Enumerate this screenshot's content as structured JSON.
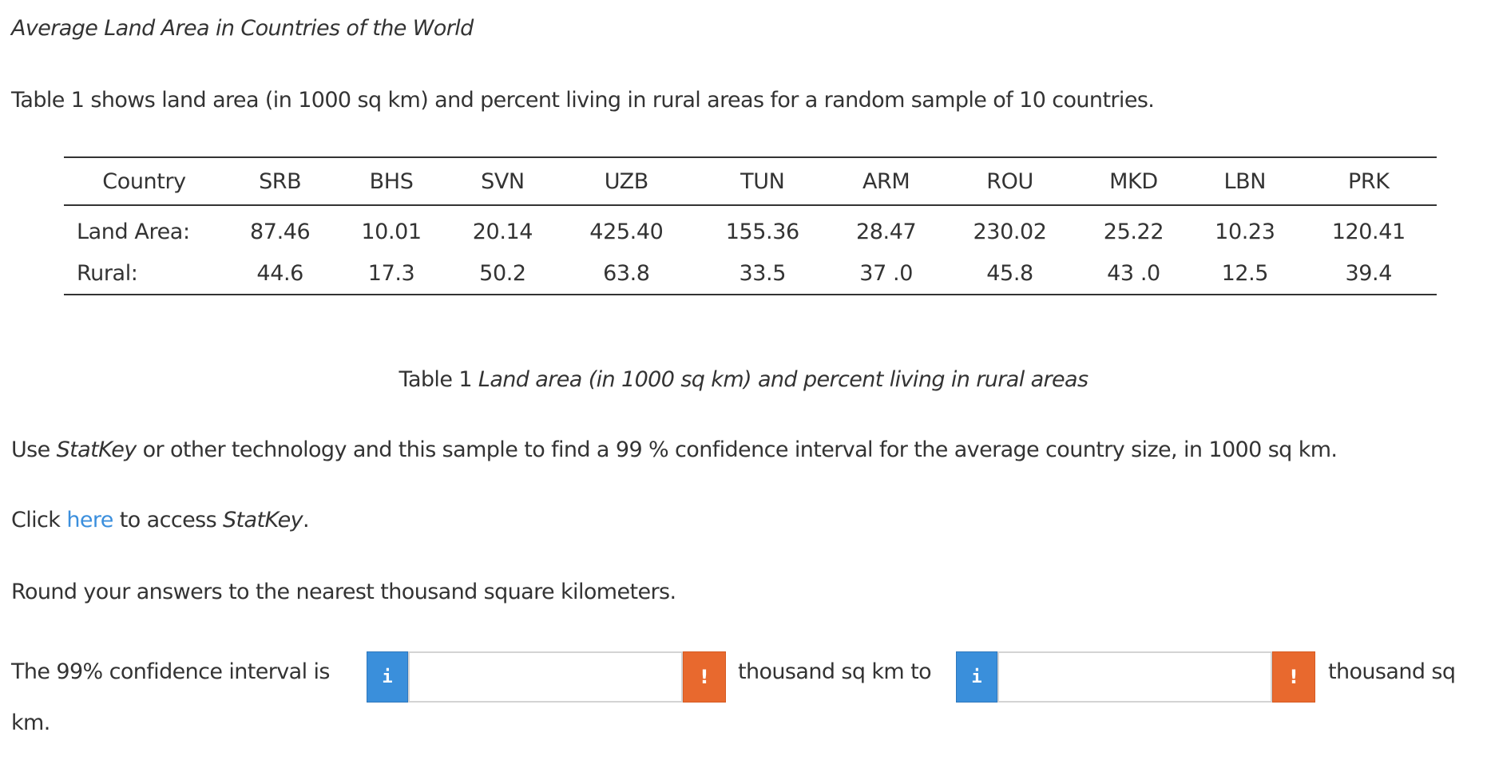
{
  "title": "Average Land Area in Countries of the World",
  "intro": "Table 1 shows land area (in 1000 sq km) and percent living in rural areas for a random sample of 10 countries.",
  "table": {
    "header_label": "Country",
    "countries": [
      "SRB",
      "BHS",
      "SVN",
      "UZB",
      "TUN",
      "ARM",
      "ROU",
      "MKD",
      "LBN",
      "PRK"
    ],
    "rows": [
      {
        "label": "Land Area:",
        "values": [
          "87.46",
          "10.01",
          "20.14",
          "425.40",
          "155.36",
          "28.47",
          "230.02",
          "25.22",
          "10.23",
          "120.41"
        ]
      },
      {
        "label": "Rural:",
        "values": [
          "44.6",
          "17.3",
          "50.2",
          "63.8",
          "33.5",
          "37 .0",
          "45.8",
          "43 .0",
          "12.5",
          "39.4"
        ]
      }
    ]
  },
  "caption": {
    "prefix": "Table 1",
    "text": "Land area (in 1000 sq km) and percent living in rural areas"
  },
  "instruction": {
    "part1": "Use ",
    "statkey": "StatKey",
    "part2": " or other technology and this sample to find a 99 % confidence interval for the average country size, in 1000 sq km."
  },
  "access": {
    "prefix": "Click ",
    "link": "here",
    "middle": " to access ",
    "statkey": "StatKey",
    "suffix": "."
  },
  "round_text": "Round your answers to the nearest thousand square kilometers.",
  "answer": {
    "prompt": "The 99% confidence interval is",
    "info_glyph": "i",
    "warn_glyph": "!",
    "lower_value": "",
    "upper_value": "",
    "between": "thousand sq km to",
    "after": "thousand sq",
    "wrap": "km."
  },
  "colors": {
    "info_button": "#3a8fdb",
    "warn_button": "#e8692e",
    "link": "#3b8fdd",
    "text": "#333333"
  }
}
